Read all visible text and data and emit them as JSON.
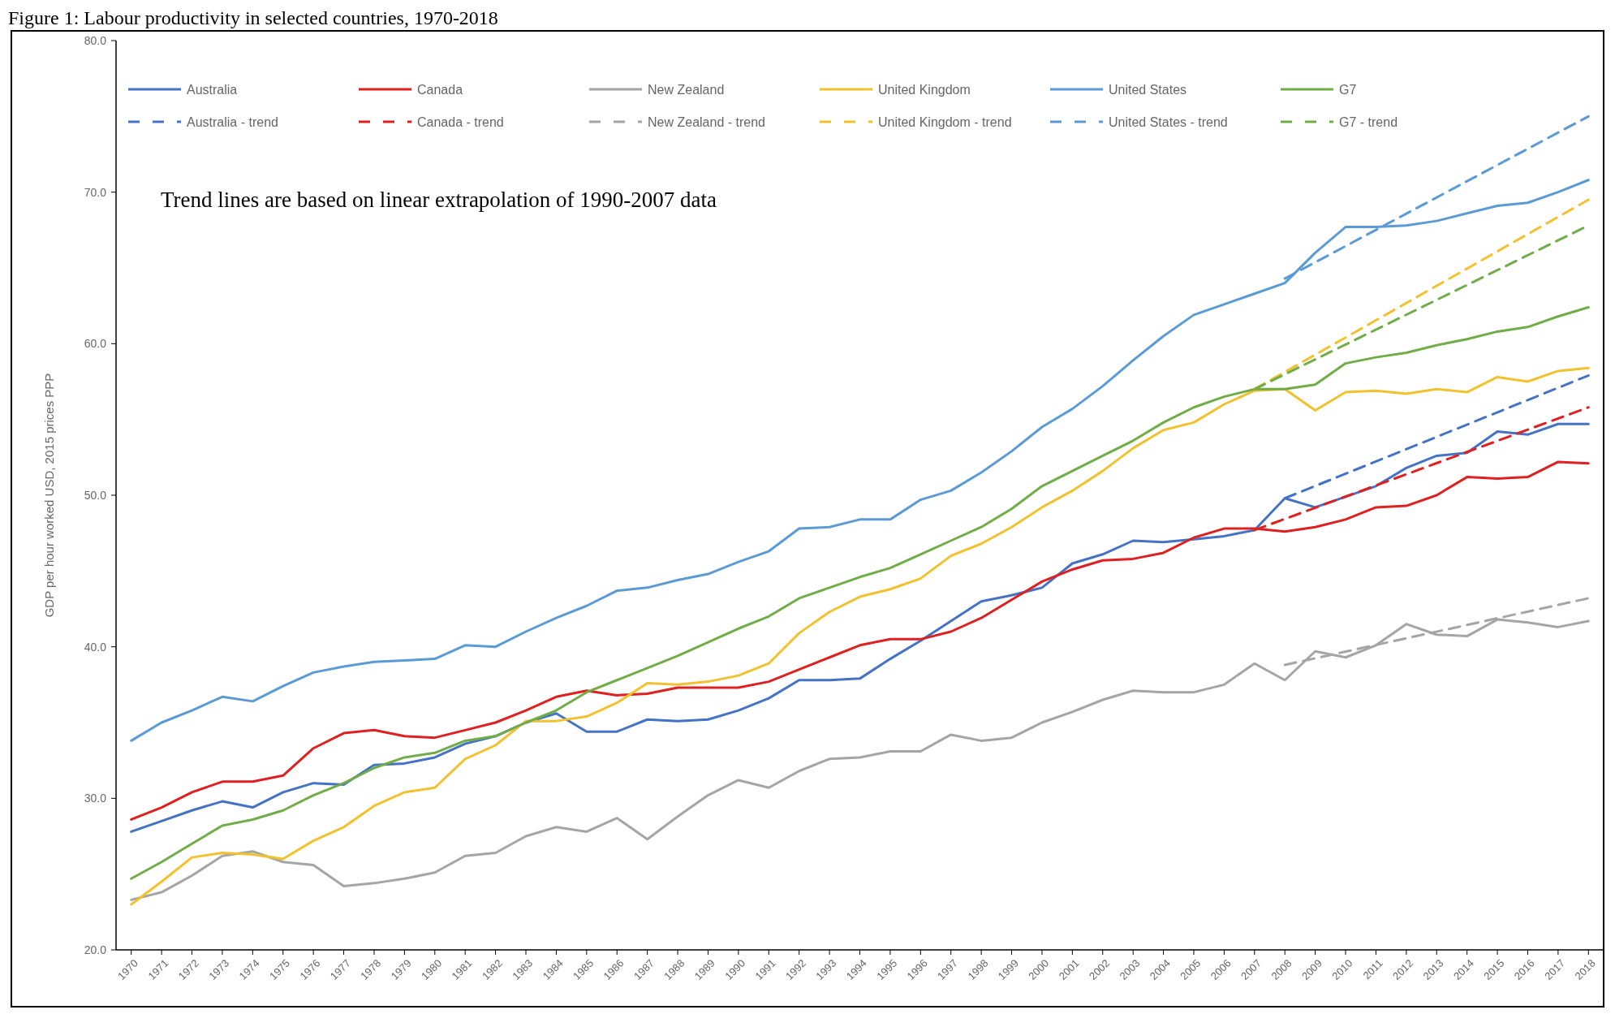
{
  "chart_data": {
    "type": "line",
    "title": "Figure 1: Labour productivity in selected countries, 1970-2018",
    "ylabel": "GDP per hour worked USD, 2015 prices PPP",
    "annotations": [
      "Trend lines are based on linear extrapolation of 1990-2007 data"
    ],
    "x": [
      1970,
      1971,
      1972,
      1973,
      1974,
      1975,
      1976,
      1977,
      1978,
      1979,
      1980,
      1981,
      1982,
      1983,
      1984,
      1985,
      1986,
      1987,
      1988,
      1989,
      1990,
      1991,
      1992,
      1993,
      1994,
      1995,
      1996,
      1997,
      1998,
      1999,
      2000,
      2001,
      2002,
      2003,
      2004,
      2005,
      2006,
      2007,
      2008,
      2009,
      2010,
      2011,
      2012,
      2013,
      2014,
      2015,
      2016,
      2017,
      2018
    ],
    "xlim": [
      1969.5,
      2018.5
    ],
    "xticks": [
      1970,
      1971,
      1972,
      1973,
      1974,
      1975,
      1976,
      1977,
      1978,
      1979,
      1980,
      1981,
      1982,
      1983,
      1984,
      1985,
      1986,
      1987,
      1988,
      1989,
      1990,
      1991,
      1992,
      1993,
      1994,
      1995,
      1996,
      1997,
      1998,
      1999,
      2000,
      2001,
      2002,
      2003,
      2004,
      2005,
      2006,
      2007,
      2008,
      2009,
      2010,
      2011,
      2012,
      2013,
      2014,
      2015,
      2016,
      2017,
      2018
    ],
    "ylim": [
      20,
      80
    ],
    "yticks": [
      {
        "value": 20,
        "label": "20.0"
      },
      {
        "value": 30,
        "label": "30.0"
      },
      {
        "value": 40,
        "label": "40.0"
      },
      {
        "value": 50,
        "label": "50.0"
      },
      {
        "value": 60,
        "label": "60.0"
      },
      {
        "value": 70,
        "label": "70.0"
      },
      {
        "value": 80,
        "label": "80.0"
      }
    ],
    "grid": false,
    "legend": "top",
    "marker": "none",
    "series": [
      {
        "name": "Australia",
        "color": "#4472c4",
        "line_style": "solid",
        "values": [
          27.8,
          28.5,
          29.2,
          29.8,
          29.4,
          30.4,
          31.0,
          30.9,
          32.2,
          32.3,
          32.7,
          33.6,
          34.1,
          35.0,
          35.6,
          34.4,
          34.4,
          35.2,
          35.1,
          35.2,
          35.8,
          36.6,
          37.8,
          37.8,
          37.9,
          39.2,
          40.4,
          41.7,
          43.0,
          43.4,
          43.9,
          45.5,
          46.1,
          47.0,
          46.9,
          47.1,
          47.3,
          47.7,
          49.8,
          49.2,
          49.9,
          50.6,
          51.8,
          52.6,
          52.8,
          54.2,
          54.0,
          54.7,
          54.7
        ]
      },
      {
        "name": "Canada",
        "color": "#e02020",
        "line_style": "solid",
        "values": [
          28.6,
          29.4,
          30.4,
          31.1,
          31.1,
          31.5,
          33.3,
          34.3,
          34.5,
          34.1,
          34.0,
          34.5,
          35.0,
          35.8,
          36.7,
          37.1,
          36.8,
          36.9,
          37.3,
          37.3,
          37.3,
          37.7,
          38.5,
          39.3,
          40.1,
          40.5,
          40.5,
          41.0,
          41.9,
          43.1,
          44.3,
          45.1,
          45.7,
          45.8,
          46.2,
          47.2,
          47.8,
          47.8,
          47.6,
          47.9,
          48.4,
          49.2,
          49.3,
          50.0,
          51.2,
          51.1,
          51.2,
          52.2,
          52.1
        ]
      },
      {
        "name": "New Zealand",
        "color": "#a5a5a5",
        "line_style": "solid",
        "values": [
          23.3,
          23.8,
          24.9,
          26.2,
          26.5,
          25.8,
          25.6,
          24.2,
          24.4,
          24.7,
          25.1,
          26.2,
          26.4,
          27.5,
          28.1,
          27.8,
          28.7,
          27.3,
          28.8,
          30.2,
          31.2,
          30.7,
          31.8,
          32.6,
          32.7,
          33.1,
          33.1,
          34.2,
          33.8,
          34.0,
          35.0,
          35.7,
          36.5,
          37.1,
          37.0,
          37.0,
          37.5,
          38.9,
          37.8,
          39.7,
          39.3,
          40.1,
          41.5,
          40.8,
          40.7,
          41.8,
          41.6,
          41.3,
          41.7
        ]
      },
      {
        "name": "United Kingdom",
        "color": "#f2c12e",
        "line_style": "solid",
        "values": [
          23.0,
          24.5,
          26.1,
          26.4,
          26.3,
          26.0,
          27.2,
          28.1,
          29.5,
          30.4,
          30.7,
          32.6,
          33.5,
          35.1,
          35.1,
          35.4,
          36.3,
          37.6,
          37.5,
          37.7,
          38.1,
          38.9,
          40.9,
          42.3,
          43.3,
          43.8,
          44.5,
          46.0,
          46.8,
          47.9,
          49.2,
          50.3,
          51.6,
          53.1,
          54.3,
          54.8,
          56.0,
          56.9,
          57.0,
          55.6,
          56.8,
          56.9,
          56.7,
          57.0,
          56.8,
          57.8,
          57.5,
          58.2,
          58.4
        ]
      },
      {
        "name": "United States",
        "color": "#5b9bd5",
        "line_style": "solid",
        "values": [
          33.8,
          35.0,
          35.8,
          36.7,
          36.4,
          37.4,
          38.3,
          38.7,
          39.0,
          39.1,
          39.2,
          40.1,
          40.0,
          41.0,
          41.9,
          42.7,
          43.7,
          43.9,
          44.4,
          44.8,
          45.6,
          46.3,
          47.8,
          47.9,
          48.4,
          48.4,
          49.7,
          50.3,
          51.5,
          52.9,
          54.5,
          55.7,
          57.2,
          58.9,
          60.5,
          61.9,
          62.6,
          63.3,
          64.0,
          66.0,
          67.7,
          67.7,
          67.8,
          68.1,
          68.6,
          69.1,
          69.3,
          70.0,
          70.8
        ]
      },
      {
        "name": "G7",
        "color": "#70ad47",
        "line_style": "solid",
        "values": [
          24.7,
          25.8,
          27.0,
          28.2,
          28.6,
          29.2,
          30.2,
          31.0,
          32.0,
          32.7,
          33.0,
          33.8,
          34.1,
          35.0,
          35.8,
          37.0,
          37.8,
          38.6,
          39.4,
          40.3,
          41.2,
          42.0,
          43.2,
          43.9,
          44.6,
          45.2,
          46.1,
          47.0,
          47.9,
          49.1,
          50.6,
          51.6,
          52.6,
          53.6,
          54.8,
          55.8,
          56.5,
          57.0,
          57.0,
          57.3,
          58.7,
          59.1,
          59.4,
          59.9,
          60.3,
          60.8,
          61.1,
          61.8,
          62.4
        ]
      },
      {
        "name": "Australia - trend",
        "color": "#4472c4",
        "line_style": "dashed",
        "x": [
          2008,
          2018
        ],
        "values": [
          49.8,
          57.9
        ]
      },
      {
        "name": "Canada - trend",
        "color": "#e02020",
        "line_style": "dashed",
        "x": [
          2007,
          2018
        ],
        "values": [
          47.7,
          55.8
        ]
      },
      {
        "name": "New Zealand - trend",
        "color": "#a5a5a5",
        "line_style": "dashed",
        "x": [
          2008,
          2018
        ],
        "values": [
          38.8,
          43.2
        ]
      },
      {
        "name": "United Kingdom - trend",
        "color": "#f2c12e",
        "line_style": "dashed",
        "x": [
          2007,
          2018
        ],
        "values": [
          57.0,
          69.5
        ]
      },
      {
        "name": "United States - trend",
        "color": "#5b9bd5",
        "line_style": "dashed",
        "x": [
          2008,
          2018
        ],
        "values": [
          64.3,
          75.0
        ]
      },
      {
        "name": "G7 - trend",
        "color": "#70ad47",
        "line_style": "dashed",
        "x": [
          2007,
          2018
        ],
        "values": [
          57.0,
          67.8
        ]
      }
    ]
  }
}
